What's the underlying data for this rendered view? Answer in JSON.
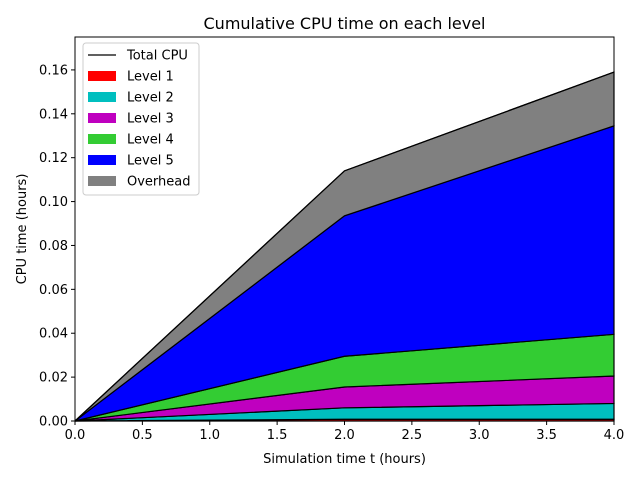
{
  "chart_data": {
    "type": "area",
    "stacked": true,
    "title": "Cumulative CPU time on each level",
    "xlabel": "Simulation time t (hours)",
    "ylabel": "CPU time (hours)",
    "xlim": [
      0.0,
      4.0
    ],
    "ylim": [
      0.0,
      0.175
    ],
    "xticks": [
      0.0,
      0.5,
      1.0,
      1.5,
      2.0,
      2.5,
      3.0,
      3.5,
      4.0
    ],
    "xtick_labels": [
      "0.0",
      "0.5",
      "1.0",
      "1.5",
      "2.0",
      "2.5",
      "3.0",
      "3.5",
      "4.0"
    ],
    "yticks": [
      0.0,
      0.02,
      0.04,
      0.06,
      0.08,
      0.1,
      0.12,
      0.14,
      0.16
    ],
    "ytick_labels": [
      "0.00",
      "0.02",
      "0.04",
      "0.06",
      "0.08",
      "0.10",
      "0.12",
      "0.14",
      "0.16"
    ],
    "x": [
      0.0,
      2.0,
      4.0
    ],
    "series": [
      {
        "name": "Level 1",
        "color": "#ff0000",
        "values": [
          0.0,
          0.0008,
          0.0008
        ]
      },
      {
        "name": "Level 2",
        "color": "#00bfbf",
        "values": [
          0.0,
          0.0052,
          0.0072
        ]
      },
      {
        "name": "Level 3",
        "color": "#bf00bf",
        "values": [
          0.0,
          0.0095,
          0.0125
        ]
      },
      {
        "name": "Level 4",
        "color": "#33cc33",
        "values": [
          0.0,
          0.014,
          0.019
        ]
      },
      {
        "name": "Level 5",
        "color": "#0000ff",
        "values": [
          0.0,
          0.064,
          0.095
        ]
      },
      {
        "name": "Overhead",
        "color": "#808080",
        "values": [
          0.0,
          0.0205,
          0.0245
        ]
      }
    ],
    "total_line": {
      "name": "Total CPU",
      "color": "#000000",
      "values": [
        0.0,
        0.114,
        0.159
      ]
    },
    "legend_position": "top-left",
    "grid": false
  }
}
